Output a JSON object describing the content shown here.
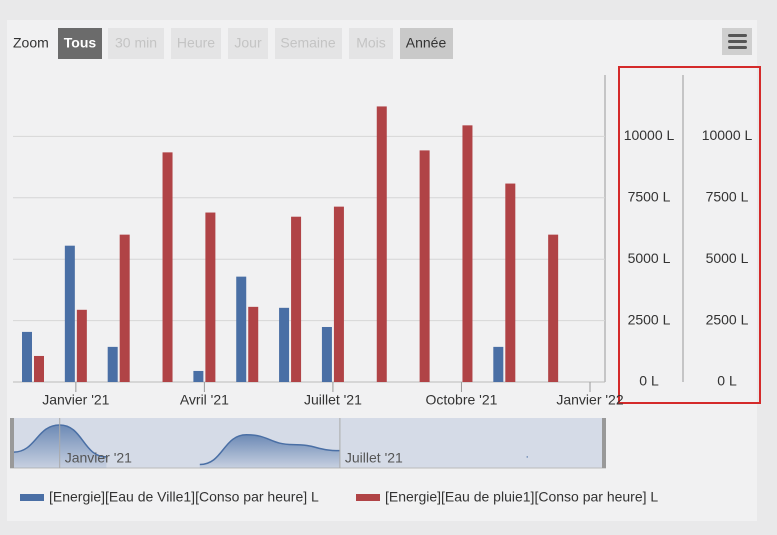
{
  "chart_data": {
    "type": "bar",
    "range_selector": {
      "label": "Zoom",
      "buttons": [
        "Tous",
        "30 min",
        "Heure",
        "Jour",
        "Semaine",
        "Mois",
        "Année"
      ]
    },
    "x": [
      "2020-12",
      "2021-01",
      "2021-02",
      "2021-03",
      "2021-04",
      "2021-05",
      "2021-06",
      "2021-07",
      "2021-08",
      "2021-09",
      "2021-10",
      "2021-11",
      "2021-12"
    ],
    "xlim": [
      "2020-12",
      "2022-01"
    ],
    "xticks": [
      {
        "value": "2021-01",
        "label": "Janvier '21"
      },
      {
        "value": "2021-04",
        "label": "Avril '21"
      },
      {
        "value": "2021-07",
        "label": "Juillet '21"
      },
      {
        "value": "2021-10",
        "label": "Octobre '21"
      },
      {
        "value": "2022-01",
        "label": "Janvier '22"
      }
    ],
    "series": [
      {
        "name": "[Energie][Eau de Ville1][Conso par heure] L",
        "color": "#4a6fa5",
        "values": [
          2040,
          5550,
          1430,
          null,
          450,
          4290,
          3020,
          2240,
          null,
          null,
          null,
          1430,
          null
        ]
      },
      {
        "name": "[Energie][Eau de pluie1][Conso par heure] L",
        "color": "#b04346",
        "values": [
          1060,
          2940,
          6000,
          9350,
          6900,
          3060,
          6730,
          7140,
          11220,
          9430,
          10450,
          8080,
          6000
        ]
      }
    ],
    "ylim": [
      0,
      12500
    ],
    "yticks": [
      {
        "value": 0,
        "label": "0 L"
      },
      {
        "value": 2500,
        "label": "2500 L"
      },
      {
        "value": 5000,
        "label": "5000 L"
      },
      {
        "value": 7500,
        "label": "7500 L"
      },
      {
        "value": 10000,
        "label": "10000 L"
      }
    ],
    "y2lim": [
      0,
      12500
    ],
    "y2ticks": [
      {
        "value": 0,
        "label": "0 L"
      },
      {
        "value": 2500,
        "label": "2500 L"
      },
      {
        "value": 5000,
        "label": "5000 L"
      },
      {
        "value": 7500,
        "label": "7500 L"
      },
      {
        "value": 10000,
        "label": "10000 L"
      }
    ],
    "grid": true,
    "navigator": {
      "xticks": [
        {
          "value": "2021-01",
          "label": "Janvier '21"
        },
        {
          "value": "2021-07",
          "label": "Juillet '21"
        }
      ]
    }
  }
}
